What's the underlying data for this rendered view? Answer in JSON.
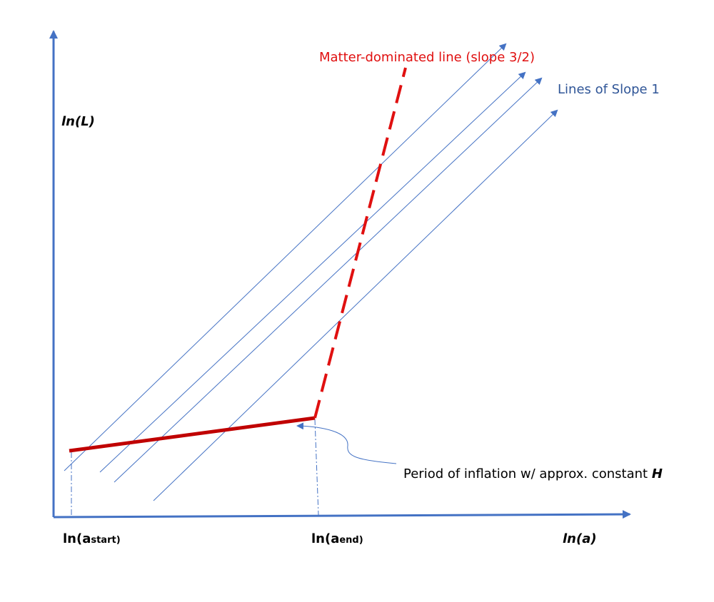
{
  "labels": {
    "matter_line": "Matter-dominated line (slope 3/2)",
    "slope_lines": "Lines of Slope 1",
    "y_axis": "ln(L)",
    "x_axis": "ln(a)",
    "a_start": {
      "main": "ln(a",
      "sub": "start",
      "close": ")"
    },
    "a_end": {
      "main": "ln(a",
      "sub": "end",
      "close": ")"
    },
    "inflation": {
      "text": "Period of inflation w/ approx. constant ",
      "symbol": "H"
    }
  }
}
